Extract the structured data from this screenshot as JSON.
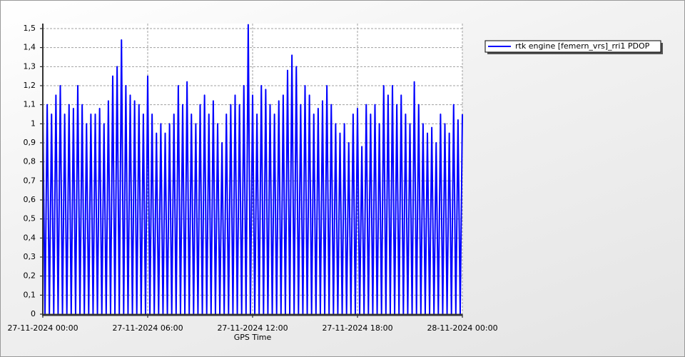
{
  "chart_data": {
    "type": "line",
    "xlabel": "GPS Time",
    "xlim": [
      0,
      24
    ],
    "xticks": [
      {
        "value": 0,
        "label": "27-11-2024 00:00"
      },
      {
        "value": 6,
        "label": "27-11-2024 06:00"
      },
      {
        "value": 12,
        "label": "27-11-2024 12:00"
      },
      {
        "value": 18,
        "label": "27-11-2024 18:00"
      },
      {
        "value": 24,
        "label": "28-11-2024 00:00"
      }
    ],
    "ylim": [
      0,
      1.5
    ],
    "yticks": [
      0,
      {
        "value": 0.1,
        "label": "0,1"
      },
      {
        "value": 0.2,
        "label": "0,2"
      },
      {
        "value": 0.3,
        "label": "0,3"
      },
      {
        "value": 0.4,
        "label": "0,4"
      },
      {
        "value": 0.5,
        "label": "0,5"
      },
      {
        "value": 0.6,
        "label": "0,6"
      },
      {
        "value": 0.7,
        "label": "0,7"
      },
      {
        "value": 0.8,
        "label": "0,8"
      },
      {
        "value": 0.9,
        "label": "0,9"
      },
      1,
      {
        "value": 1.1,
        "label": "1,1"
      },
      {
        "value": 1.2,
        "label": "1,2"
      },
      {
        "value": 1.3,
        "label": "1,3"
      },
      {
        "value": 1.4,
        "label": "1,4"
      },
      {
        "value": 1.5,
        "label": "1,5"
      }
    ],
    "grid": true,
    "legend": "top-right",
    "x": [
      0,
      0.125,
      0.25,
      0.375,
      0.5,
      0.625,
      0.75,
      0.875,
      1,
      1.125,
      1.25,
      1.375,
      1.5,
      1.625,
      1.75,
      1.875,
      2,
      2.125,
      2.25,
      2.375,
      2.5,
      2.625,
      2.75,
      2.875,
      3,
      3.125,
      3.25,
      3.375,
      3.5,
      3.625,
      3.75,
      3.875,
      4,
      4.125,
      4.25,
      4.375,
      4.5,
      4.625,
      4.75,
      4.875,
      5,
      5.125,
      5.25,
      5.375,
      5.5,
      5.625,
      5.75,
      5.875,
      6,
      6.125,
      6.25,
      6.375,
      6.5,
      6.625,
      6.75,
      6.875,
      7,
      7.125,
      7.25,
      7.375,
      7.5,
      7.625,
      7.75,
      7.875,
      8,
      8.125,
      8.25,
      8.375,
      8.5,
      8.625,
      8.75,
      8.875,
      9,
      9.125,
      9.25,
      9.375,
      9.5,
      9.625,
      9.75,
      9.875,
      10,
      10.125,
      10.25,
      10.375,
      10.5,
      10.625,
      10.75,
      10.875,
      11,
      11.125,
      11.25,
      11.375,
      11.5,
      11.625,
      11.75,
      11.875,
      12,
      12.125,
      12.25,
      12.375,
      12.5,
      12.625,
      12.75,
      12.875,
      13,
      13.125,
      13.25,
      13.375,
      13.5,
      13.625,
      13.75,
      13.875,
      14,
      14.125,
      14.25,
      14.375,
      14.5,
      14.625,
      14.75,
      14.875,
      15,
      15.125,
      15.25,
      15.375,
      15.5,
      15.625,
      15.75,
      15.875,
      16,
      16.125,
      16.25,
      16.375,
      16.5,
      16.625,
      16.75,
      16.875,
      17,
      17.125,
      17.25,
      17.375,
      17.5,
      17.625,
      17.75,
      17.875,
      18,
      18.125,
      18.25,
      18.375,
      18.5,
      18.625,
      18.75,
      18.875,
      19,
      19.125,
      19.25,
      19.375,
      19.5,
      19.625,
      19.75,
      19.875,
      20,
      20.125,
      20.25,
      20.375,
      20.5,
      20.625,
      20.75,
      20.875,
      21,
      21.125,
      21.25,
      21.375,
      21.5,
      21.625,
      21.75,
      21.875,
      22,
      22.125,
      22.25,
      22.375,
      22.5,
      22.625,
      22.75,
      22.875,
      23,
      23.125,
      23.25,
      23.375,
      23.5,
      23.625,
      23.75,
      23.875,
      24
    ],
    "series": [
      {
        "name": "rtk engine [femern_vrs]_rri1 PDOP",
        "color": "#0000ff",
        "values": [
          1.08,
          0,
          1.1,
          0,
          1.05,
          0,
          1.15,
          0,
          1.2,
          0,
          1.05,
          0,
          1.1,
          0,
          1.08,
          0,
          1.2,
          0,
          1.1,
          0,
          1.0,
          0,
          1.05,
          0,
          1.05,
          0,
          1.08,
          0,
          1.0,
          0,
          1.12,
          0,
          1.25,
          0,
          1.3,
          0,
          1.44,
          0,
          1.2,
          0,
          1.15,
          0,
          1.12,
          0,
          1.1,
          0,
          1.05,
          0,
          1.25,
          0,
          1.05,
          0,
          0.95,
          0,
          1.0,
          0,
          0.95,
          0,
          1.0,
          0,
          1.05,
          0,
          1.2,
          0,
          1.1,
          0,
          1.22,
          0,
          1.05,
          0,
          1.0,
          0,
          1.1,
          0,
          1.15,
          0,
          1.05,
          0,
          1.12,
          0,
          1.0,
          0,
          0.9,
          0,
          1.05,
          0,
          1.1,
          0,
          1.15,
          0,
          1.1,
          0,
          1.2,
          0,
          1.52,
          0,
          1.15,
          0,
          1.05,
          0,
          1.2,
          0,
          1.18,
          0,
          1.1,
          0,
          1.05,
          0,
          1.12,
          0,
          1.15,
          0,
          1.28,
          0,
          1.36,
          0,
          1.3,
          0,
          1.1,
          0,
          1.2,
          0,
          1.15,
          0,
          1.05,
          0,
          1.08,
          0,
          1.12,
          0,
          1.2,
          0,
          1.1,
          0,
          1.0,
          0,
          0.95,
          0,
          1.0,
          0,
          0.9,
          0,
          1.05,
          0,
          1.08,
          0,
          0.88,
          0,
          1.1,
          0,
          1.05,
          0,
          1.1,
          0,
          1.0,
          0,
          1.2,
          0,
          1.15,
          0,
          1.2,
          0,
          1.1,
          0,
          1.15,
          0,
          1.05,
          0,
          1.0,
          0,
          1.22,
          0,
          1.1,
          0,
          1.0,
          0,
          0.95,
          0,
          0.98,
          0,
          0.9,
          0,
          1.05,
          0,
          1.0,
          0,
          0.95,
          0,
          1.1,
          0,
          1.02,
          0,
          1.05
        ]
      }
    ]
  }
}
